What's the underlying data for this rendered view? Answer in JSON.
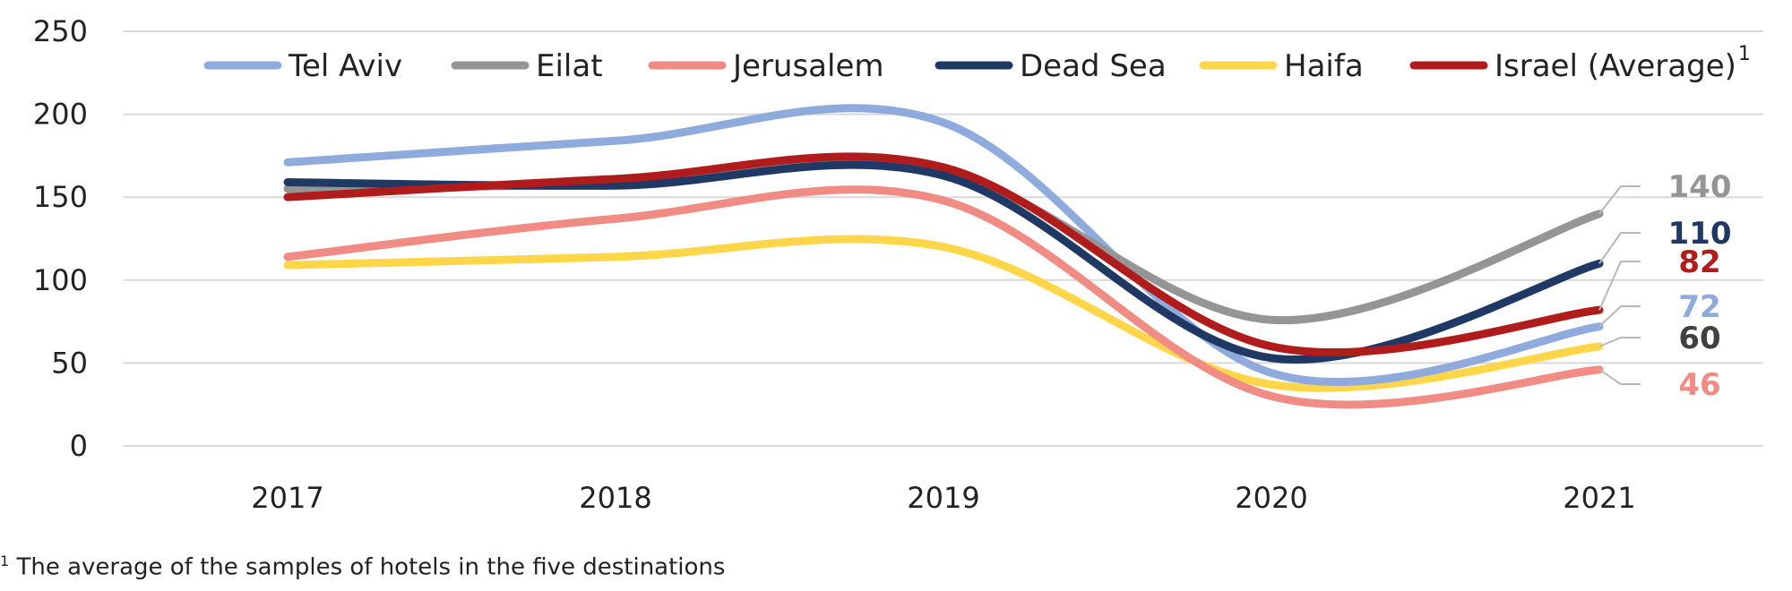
{
  "chart_data": {
    "type": "line",
    "categories": [
      "2017",
      "2018",
      "2019",
      "2020",
      "2021"
    ],
    "ylim": [
      0,
      250
    ],
    "yticks": [
      "0",
      "50",
      "100",
      "150",
      "200",
      "250"
    ],
    "grid": true,
    "legend_position": "top",
    "series": [
      {
        "name": "Tel Aviv",
        "color": "#8faadc",
        "values": [
          171,
          184,
          195,
          44,
          72
        ],
        "end_label": "72"
      },
      {
        "name": "Eilat",
        "color": "#959595",
        "values": [
          155,
          158,
          165,
          76,
          140
        ],
        "end_label": "140"
      },
      {
        "name": "Jerusalem",
        "color": "#f08c84",
        "values": [
          114,
          137,
          148,
          30,
          46
        ],
        "end_label": "46"
      },
      {
        "name": "Dead Sea",
        "color": "#203864",
        "values": [
          159,
          157,
          163,
          53,
          110
        ],
        "end_label": "110"
      },
      {
        "name": "Haifa",
        "color": "#ffd54a",
        "values": [
          109,
          114,
          120,
          37,
          60
        ],
        "end_label": "60"
      },
      {
        "name": "Israel (Average)",
        "color": "#b01c1c",
        "values": [
          150,
          161,
          168,
          60,
          82
        ],
        "end_label": "82",
        "legend_sup": "1"
      }
    ],
    "end_label_colors": {
      "140": "#959595",
      "110": "#203864",
      "82": "#b01c1c",
      "72": "#8faadc",
      "60": "#404040",
      "46": "#f08c84"
    }
  },
  "footnote": {
    "marker": "1",
    "text": " The average of the samples of hotels in the five destinations"
  }
}
